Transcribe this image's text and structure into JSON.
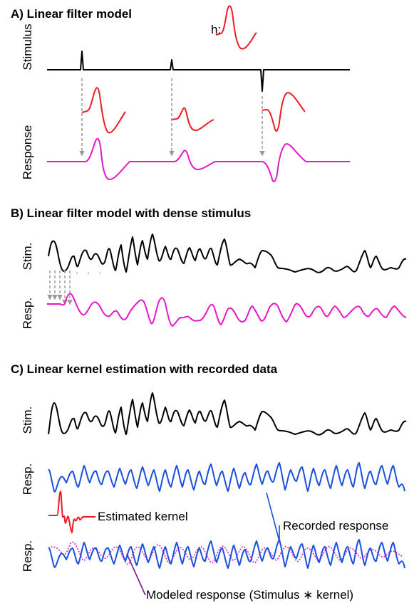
{
  "panels": {
    "a": {
      "title": "A) Linear filter model",
      "stim_label": "Stimulus",
      "resp_label": "Response",
      "kernel_label": "h:"
    },
    "b": {
      "title": "B) Linear filter model with dense stimulus",
      "stim_label": "Stim.",
      "resp_label": "Resp.",
      "dots": "· · ·"
    },
    "c": {
      "title": "C) Linear kernel estimation with recorded data",
      "stim_label": "Stim.",
      "resp_label_1": "Resp.",
      "resp_label_2": "Resp."
    }
  },
  "annotations": {
    "estimated_kernel": "Estimated kernel",
    "recorded_response": "Recorded response",
    "modeled_response": "Modeled response (Stimulus ∗ kernel)"
  },
  "colors": {
    "stimulus": "#000000",
    "kernel": "#ee1c25",
    "response": "#e619c8",
    "recorded": "#1a4fe0",
    "arrow": "#9a9a9a"
  }
}
